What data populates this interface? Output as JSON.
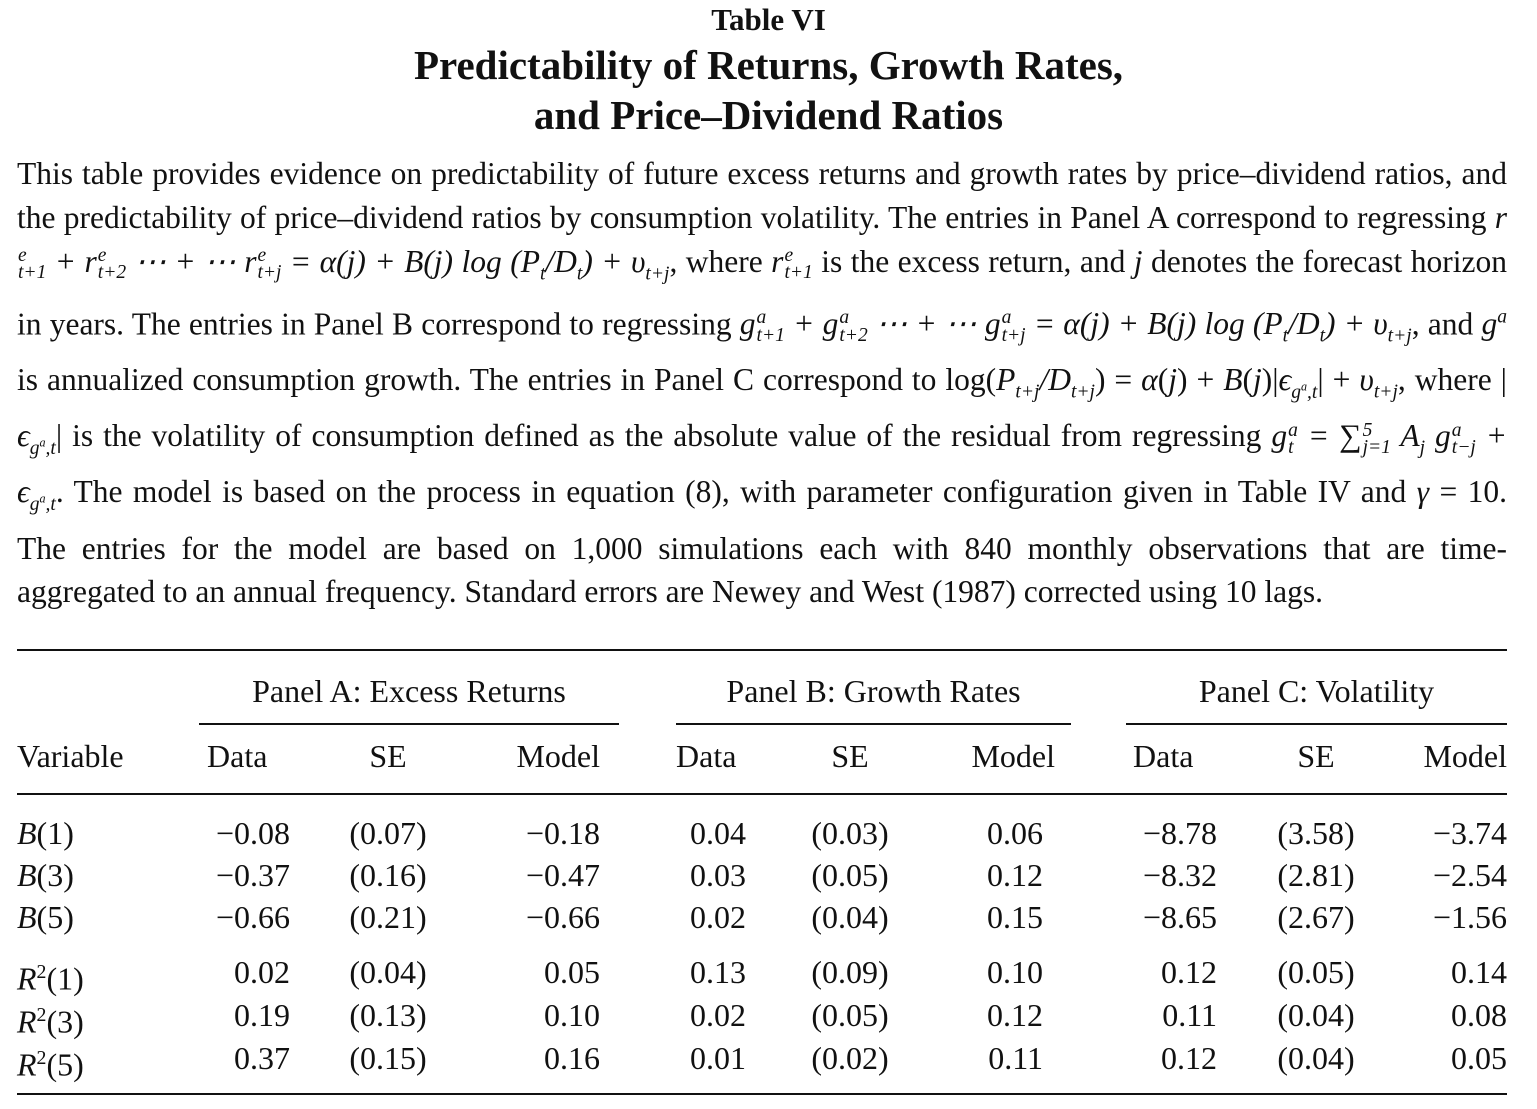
{
  "header": {
    "table_label": "Table VI",
    "title_line1": "Predictability of Returns, Growth Rates,",
    "title_line2": "and Price–Dividend Ratios"
  },
  "caption": {
    "s1": "This table provides evidence on predictability of future excess returns and growth rates by price–dividend ratios, and the predictability of price–dividend ratios by consumption volatility. The entries in Panel A correspond to regressing",
    "s2": "where",
    "s3": "is the excess return, and",
    "s4": "denotes the forecast horizon in years. The entries in Panel B correspond to regressing",
    "s5": ", and",
    "s6": "is annualized consumption growth. The entries in Panel C correspond to",
    "s7": ", where",
    "s8": "is the volatility of consumption defined as the absolute value of the residual from regressing",
    "s9": ". The model is based on the process in equation (8), with parameter configuration given in Table IV and",
    "s10": ". The entries for the model are based on 1,000 simulations each with 840 monthly observations that are time-aggregated to an annual frequency. Standard errors are Newey and West (1987) corrected using 10 lags."
  },
  "table": {
    "panels": [
      "Panel A: Excess Returns",
      "Panel B: Growth Rates",
      "Panel C: Volatility"
    ],
    "variable_header": "Variable",
    "subheaders": [
      "Data",
      "SE",
      "Model"
    ],
    "rows": [
      {
        "label": "B(1)",
        "a": [
          "−0.08",
          "(0.07)",
          "−0.18"
        ],
        "b": [
          "0.04",
          "(0.03)",
          "0.06"
        ],
        "c": [
          "−8.78",
          "(3.58)",
          "−3.74"
        ]
      },
      {
        "label": "B(3)",
        "a": [
          "−0.37",
          "(0.16)",
          "−0.47"
        ],
        "b": [
          "0.03",
          "(0.05)",
          "0.12"
        ],
        "c": [
          "−8.32",
          "(2.81)",
          "−2.54"
        ]
      },
      {
        "label": "B(5)",
        "a": [
          "−0.66",
          "(0.21)",
          "−0.66"
        ],
        "b": [
          "0.02",
          "(0.04)",
          "0.15"
        ],
        "c": [
          "−8.65",
          "(2.67)",
          "−1.56"
        ]
      },
      {
        "label": "R2(1)",
        "a": [
          "0.02",
          "(0.04)",
          "0.05"
        ],
        "b": [
          "0.13",
          "(0.09)",
          "0.10"
        ],
        "c": [
          "0.12",
          "(0.05)",
          "0.14"
        ]
      },
      {
        "label": "R2(3)",
        "a": [
          "0.19",
          "(0.13)",
          "0.10"
        ],
        "b": [
          "0.02",
          "(0.05)",
          "0.12"
        ],
        "c": [
          "0.11",
          "(0.04)",
          "0.08"
        ]
      },
      {
        "label": "R2(5)",
        "a": [
          "0.37",
          "(0.15)",
          "0.16"
        ],
        "b": [
          "0.01",
          "(0.02)",
          "0.11"
        ],
        "c": [
          "0.12",
          "(0.04)",
          "0.05"
        ]
      }
    ]
  }
}
